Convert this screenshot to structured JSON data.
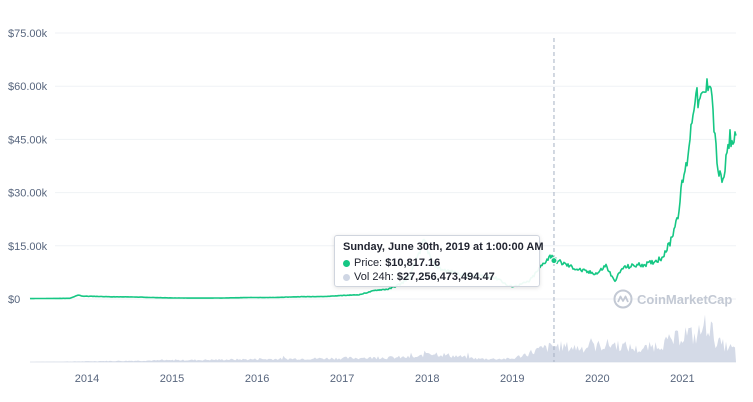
{
  "chart_data": {
    "type": "line",
    "y_ticks": [
      {
        "value": 0,
        "label": "$0"
      },
      {
        "value": 15000,
        "label": "$15.00k"
      },
      {
        "value": 30000,
        "label": "$30.00k"
      },
      {
        "value": 45000,
        "label": "$45.00k"
      },
      {
        "value": 60000,
        "label": "$60.00k"
      },
      {
        "value": 75000,
        "label": "$75.00k"
      }
    ],
    "x_ticks": [
      {
        "value": 2014,
        "label": "2014"
      },
      {
        "value": 2015,
        "label": "2015"
      },
      {
        "value": 2016,
        "label": "2016"
      },
      {
        "value": 2017,
        "label": "2017"
      },
      {
        "value": 2018,
        "label": "2018"
      },
      {
        "value": 2019,
        "label": "2019"
      },
      {
        "value": 2020,
        "label": "2020"
      },
      {
        "value": 2021,
        "label": "2021"
      }
    ],
    "xlim": [
      2013.33,
      2021.63
    ],
    "ylim": [
      0,
      75000
    ],
    "price_series": {
      "x": [
        2013.33,
        2013.8,
        2013.9,
        2013.95,
        2014.1,
        2014.3,
        2014.5,
        2014.8,
        2015.0,
        2015.3,
        2015.6,
        2015.9,
        2016.2,
        2016.5,
        2016.8,
        2017.0,
        2017.2,
        2017.4,
        2017.55,
        2017.7,
        2017.8,
        2017.9,
        2017.97,
        2018.05,
        2018.15,
        2018.3,
        2018.5,
        2018.7,
        2018.85,
        2018.95,
        2019.05,
        2019.2,
        2019.3,
        2019.4,
        2019.47,
        2019.5,
        2019.6,
        2019.75,
        2019.9,
        2020.0,
        2020.1,
        2020.2,
        2020.3,
        2020.45,
        2020.6,
        2020.75,
        2020.85,
        2020.95,
        2021.0,
        2021.05,
        2021.1,
        2021.15,
        2021.2,
        2021.28,
        2021.33,
        2021.38,
        2021.42,
        2021.45,
        2021.48,
        2021.52,
        2021.56,
        2021.6,
        2021.63
      ],
      "y": [
        120,
        200,
        1100,
        800,
        750,
        600,
        600,
        400,
        300,
        250,
        280,
        420,
        420,
        650,
        700,
        1000,
        1200,
        2500,
        2800,
        4400,
        6500,
        13000,
        16500,
        10500,
        8500,
        7500,
        6500,
        6500,
        5600,
        3600,
        3700,
        5000,
        8000,
        11000,
        12500,
        11000,
        10000,
        8500,
        7500,
        7200,
        9500,
        5000,
        8800,
        9500,
        9900,
        11500,
        15500,
        24000,
        33000,
        38000,
        48000,
        58000,
        55000,
        59000,
        63000,
        46000,
        36000,
        34000,
        33000,
        40000,
        46000,
        43000,
        48000
      ]
    },
    "volume_series": {
      "x": [
        2013.33,
        2017.9,
        2018.0,
        2018.2,
        2018.6,
        2019.0,
        2019.3,
        2019.5,
        2019.8,
        2020.2,
        2020.5,
        2020.9,
        2021.05,
        2021.15,
        2021.3,
        2021.4,
        2021.5,
        2021.63
      ],
      "y": [
        0.0,
        0.12,
        0.25,
        0.18,
        0.08,
        0.08,
        0.3,
        0.4,
        0.35,
        0.45,
        0.3,
        0.55,
        0.75,
        0.6,
        1.0,
        0.5,
        0.4,
        0.3
      ]
    },
    "highlight": {
      "x": 2019.49,
      "y": 10817.16
    }
  },
  "colors": {
    "price_line": "#16c784",
    "volume_fill": "#cfd6e4",
    "grid": "#eff2f5",
    "crosshair": "#a6b0c3",
    "vol_dot": "#cfd6e4"
  },
  "tooltip": {
    "title": "Sunday, June 30th, 2019 at 1:00:00 AM",
    "price_label": "Price:",
    "price_value": "$10,817.16",
    "vol_label": "Vol 24h:",
    "vol_value": "$27,256,473,494.47"
  },
  "watermark": {
    "text": "CoinMarketCap",
    "icon": "coinmarketcap-logo-icon"
  }
}
